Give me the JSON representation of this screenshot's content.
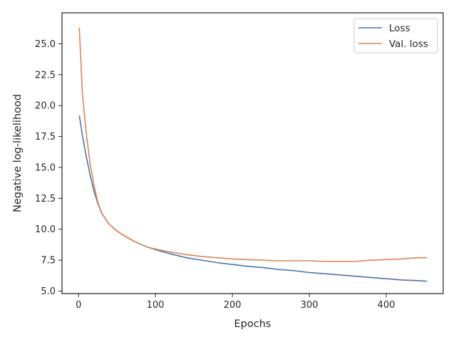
{
  "chart_data": {
    "type": "line",
    "xlabel": "Epochs",
    "ylabel": "Negative log-likelihood",
    "xlim": [
      -21.5,
      474.0
    ],
    "ylim": [
      4.8,
      27.5
    ],
    "xticks": [
      0,
      100,
      200,
      300,
      400
    ],
    "xtick_labels": [
      "0",
      "100",
      "200",
      "300",
      "400"
    ],
    "yticks": [
      5.0,
      7.5,
      10.0,
      12.5,
      15.0,
      17.5,
      20.0,
      22.5,
      25.0
    ],
    "ytick_labels": [
      "5.0",
      "7.5",
      "10.0",
      "12.5",
      "15.0",
      "17.5",
      "20.0",
      "22.5",
      "25.0"
    ],
    "legend_position": "top-right",
    "grid": false,
    "x": [
      1,
      5,
      10,
      15,
      20,
      25,
      30,
      40,
      50,
      60,
      70,
      80,
      90,
      100,
      120,
      140,
      160,
      180,
      200,
      220,
      240,
      260,
      280,
      300,
      320,
      340,
      360,
      380,
      400,
      420,
      440,
      453
    ],
    "series": [
      {
        "name": "Loss",
        "color": "#4c72b0",
        "values": [
          19.2,
          17.6,
          15.9,
          14.4,
          13.1,
          12.1,
          11.3,
          10.4,
          9.85,
          9.45,
          9.1,
          8.8,
          8.55,
          8.35,
          8.0,
          7.7,
          7.5,
          7.3,
          7.15,
          7.0,
          6.9,
          6.75,
          6.65,
          6.5,
          6.4,
          6.3,
          6.2,
          6.1,
          6.0,
          5.9,
          5.85,
          5.8
        ]
      },
      {
        "name": "Val. loss",
        "color": "#dd8452",
        "values": [
          26.3,
          21.0,
          17.8,
          15.3,
          13.6,
          12.2,
          11.3,
          10.4,
          9.85,
          9.45,
          9.1,
          8.8,
          8.55,
          8.4,
          8.15,
          7.95,
          7.8,
          7.7,
          7.6,
          7.55,
          7.5,
          7.45,
          7.45,
          7.45,
          7.4,
          7.4,
          7.4,
          7.5,
          7.55,
          7.6,
          7.7,
          7.7
        ]
      }
    ]
  }
}
